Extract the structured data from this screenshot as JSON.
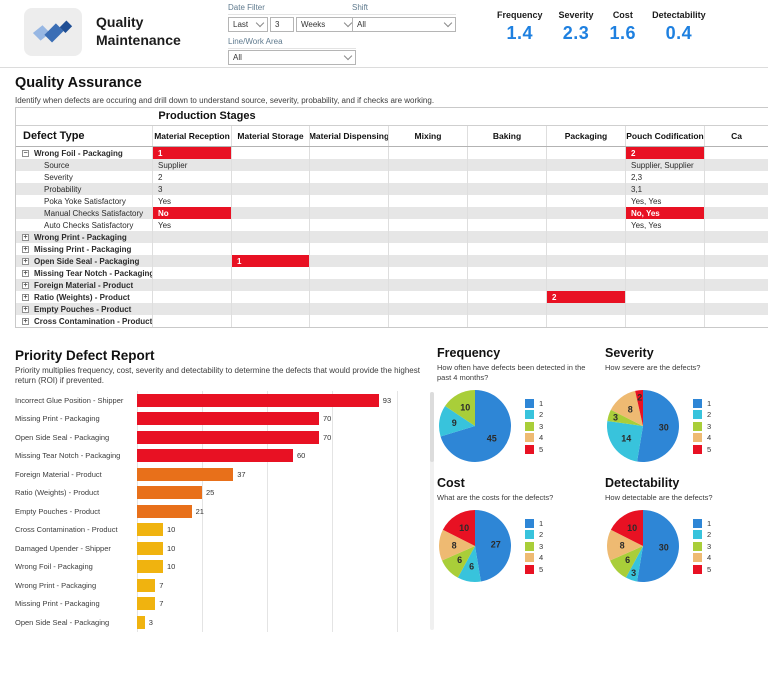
{
  "colors": {
    "accent_blue": "#1E80E0",
    "red": "#E81123",
    "orange": "#E8701A",
    "yellow": "#F0B30F",
    "row_alt": "#E6E6E6",
    "pie": {
      "1": "#2E86D6",
      "2": "#38C3DC",
      "3": "#A9CE39",
      "4": "#EEBA72",
      "5": "#E81123"
    }
  },
  "header": {
    "title_line1": "Quality",
    "title_line2": "Maintenance",
    "filters": {
      "date_filter_label": "Date Filter",
      "date_range_type": "Last",
      "date_range_number": "3",
      "date_range_unit": "Weeks",
      "line_label": "Line/Work Area",
      "line_value": "All",
      "shift_label": "Shift",
      "shift_value": "All"
    },
    "kpis": [
      {
        "label": "Frequency",
        "value": "1.4"
      },
      {
        "label": "Severity",
        "value": "2.3"
      },
      {
        "label": "Cost",
        "value": "1.6"
      },
      {
        "label": "Detectability",
        "value": "0.4"
      }
    ]
  },
  "qa": {
    "title": "Quality Assurance",
    "subtitle": "Identify when defects are occuring and drill down to understand source, severity, probability, and if checks are working.",
    "table": {
      "group_header": "Production Stages",
      "columns": [
        "Defect Type",
        "Material Reception",
        "Material Storage",
        "Material Dispensing",
        "Mixing",
        "Baking",
        "Packaging",
        "Pouch Codification",
        "Ca"
      ],
      "rows": [
        {
          "label": "Wrong Foil - Packaging",
          "type": "parent",
          "expanded": true,
          "cells": {
            "1": {
              "text": "1",
              "red": true
            },
            "7": {
              "text": "2",
              "red": true
            }
          }
        },
        {
          "label": "Source",
          "type": "sub",
          "cells": {
            "1": {
              "text": "Supplier"
            },
            "7": {
              "text": "Supplier, Supplier"
            }
          }
        },
        {
          "label": "Severity",
          "type": "sub",
          "cells": {
            "1": {
              "text": "2"
            },
            "7": {
              "text": "2,3"
            }
          }
        },
        {
          "label": "Probability",
          "type": "sub",
          "cells": {
            "1": {
              "text": "3"
            },
            "7": {
              "text": "3,1"
            }
          }
        },
        {
          "label": "Poka Yoke Satisfactory",
          "type": "sub",
          "cells": {
            "1": {
              "text": "Yes"
            },
            "7": {
              "text": "Yes, Yes"
            }
          }
        },
        {
          "label": "Manual Checks Satisfactory",
          "type": "sub",
          "cells": {
            "1": {
              "text": "No",
              "red": true
            },
            "7": {
              "text": "No, Yes",
              "red": true
            }
          }
        },
        {
          "label": "Auto Checks Satisfactory",
          "type": "sub",
          "cells": {
            "1": {
              "text": "Yes"
            },
            "7": {
              "text": "Yes, Yes"
            }
          }
        },
        {
          "label": "Wrong Print - Packaging",
          "type": "parent",
          "expanded": false,
          "cells": {}
        },
        {
          "label": "Missing Print  - Packaging",
          "type": "parent",
          "expanded": false,
          "cells": {}
        },
        {
          "label": "Open Side Seal - Packaging",
          "type": "parent",
          "expanded": false,
          "cells": {
            "2": {
              "text": "1",
              "red": true
            }
          }
        },
        {
          "label": "Missing Tear Notch - Packaging",
          "type": "parent",
          "expanded": false,
          "cells": {}
        },
        {
          "label": "Foreign Material - Product",
          "type": "parent",
          "expanded": false,
          "cells": {}
        },
        {
          "label": "Ratio (Weights) - Product",
          "type": "parent",
          "expanded": false,
          "cells": {
            "6": {
              "text": "2",
              "red": true
            }
          }
        },
        {
          "label": "Empty Pouches - Product",
          "type": "parent",
          "expanded": false,
          "cells": {}
        },
        {
          "label": "Cross Contamination - Product",
          "type": "parent",
          "expanded": false,
          "cells": {}
        }
      ]
    }
  },
  "chart_data": [
    {
      "id": "priority-defect-report",
      "type": "bar",
      "orientation": "horizontal",
      "title": "Priority Defect Report",
      "subtitle": "Priority multiplies frequency, cost, severity and detectability to determine the defects that would provide the highest return (ROI) if prevented.",
      "categories": [
        "Incorrect Glue Position - Shipper",
        "Missing Print  - Packaging",
        "Open Side Seal - Packaging",
        "Missing Tear Notch - Packaging",
        "Foreign Material - Product",
        "Ratio (Weights) - Product",
        "Empty Pouches - Product",
        "Cross Contamination - Product",
        "Damaged Upender - Shipper",
        "Wrong Foil - Packaging",
        "Wrong Print - Packaging",
        "Missing Print  - Packaging",
        "Open Side Seal - Packaging"
      ],
      "values": [
        93,
        70,
        70,
        60,
        37,
        25,
        21,
        10,
        10,
        10,
        7,
        7,
        3
      ],
      "bar_colors": [
        "red",
        "red",
        "red",
        "red",
        "orange",
        "orange",
        "orange",
        "yellow",
        "yellow",
        "yellow",
        "yellow",
        "yellow",
        "yellow"
      ],
      "xlim": [
        0,
        100
      ],
      "gridlines": [
        0,
        25,
        50,
        75,
        100
      ],
      "grid": true,
      "legend": false
    },
    {
      "id": "frequency",
      "type": "pie",
      "title": "Frequency",
      "subtitle": "How often have defects been detected in the past 4 months?",
      "labels": [
        "1",
        "2",
        "3"
      ],
      "values": [
        45,
        9,
        10
      ],
      "legend": [
        "1",
        "2",
        "3",
        "4",
        "5"
      ],
      "legend_position": "right"
    },
    {
      "id": "severity",
      "type": "pie",
      "title": "Severity",
      "subtitle": "How severe are the defects?",
      "labels": [
        "1",
        "2",
        "3",
        "4",
        "5"
      ],
      "values": [
        30,
        14,
        3,
        8,
        2
      ],
      "legend": [
        "1",
        "2",
        "3",
        "4",
        "5"
      ],
      "legend_position": "right"
    },
    {
      "id": "cost",
      "type": "pie",
      "title": "Cost",
      "subtitle": "What are the costs for the defects?",
      "labels": [
        "1",
        "2",
        "3",
        "4",
        "5"
      ],
      "values": [
        27,
        6,
        6,
        8,
        10
      ],
      "legend": [
        "1",
        "2",
        "3",
        "4",
        "5"
      ],
      "legend_position": "right"
    },
    {
      "id": "detectability",
      "type": "pie",
      "title": "Detectability",
      "subtitle": "How detectable are the defects?",
      "labels": [
        "1",
        "2",
        "3",
        "4",
        "5"
      ],
      "values": [
        30,
        3,
        6,
        8,
        10
      ],
      "legend": [
        "1",
        "2",
        "3",
        "4",
        "5"
      ],
      "legend_position": "right"
    }
  ]
}
